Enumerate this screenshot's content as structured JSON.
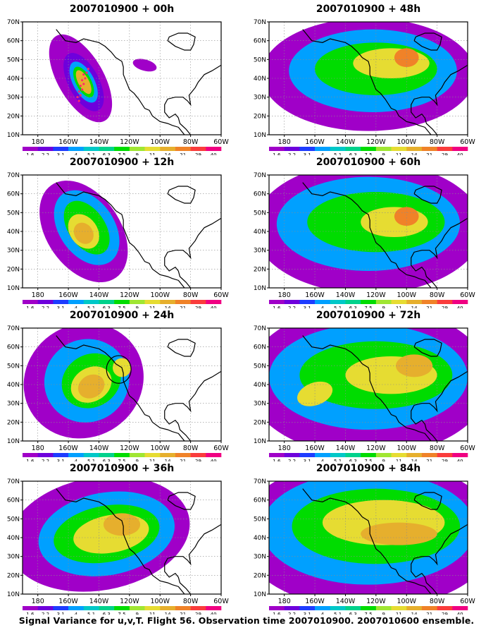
{
  "caption": "Signal Variance for u,v,T. Flight 56. Observation time 2007010900. 2007010600 ensemble.",
  "palette": [
    {
      "label": "1.6",
      "color": "#a000c8"
    },
    {
      "label": "2.2",
      "color": "#6e00dc"
    },
    {
      "label": "3.1",
      "color": "#1e3cff"
    },
    {
      "label": "4",
      "color": "#00a0ff"
    },
    {
      "label": "5.1",
      "color": "#00c8c8"
    },
    {
      "label": "6.3",
      "color": "#00d28c"
    },
    {
      "label": "7.5",
      "color": "#00dc00"
    },
    {
      "label": "9",
      "color": "#a0e632"
    },
    {
      "label": "11",
      "color": "#e6dc32"
    },
    {
      "label": "14",
      "color": "#e6af2d"
    },
    {
      "label": "21",
      "color": "#f08228"
    },
    {
      "label": "29",
      "color": "#fa3c3c"
    },
    {
      "label": "40",
      "color": "#f00082"
    }
  ],
  "chart_data": [
    {
      "type": "heatmap",
      "title": "2007010900 + 00h",
      "x_ticks": [
        "180",
        "160W",
        "140W",
        "120W",
        "100W",
        "80W",
        "60W"
      ],
      "y_ticks": [
        "10N",
        "20N",
        "30N",
        "40N",
        "50N",
        "60N",
        "70N"
      ],
      "xlim": [
        -190,
        -60
      ],
      "ylim": [
        10,
        70
      ],
      "grid": true,
      "blobs": [
        {
          "lon": -152,
          "lat": 40,
          "rx": 15,
          "ry": 26,
          "rot": -30,
          "level": 0
        },
        {
          "lon": -150,
          "lat": 38,
          "rx": 10,
          "ry": 17,
          "rot": -28,
          "level": 1
        },
        {
          "lon": -150,
          "lat": 38,
          "rx": 7,
          "ry": 12,
          "rot": -28,
          "level": 3
        },
        {
          "lon": -150,
          "lat": 38,
          "rx": 5,
          "ry": 9,
          "rot": -28,
          "level": 6
        },
        {
          "lon": -150,
          "lat": 38,
          "rx": 3.5,
          "ry": 7,
          "rot": -28,
          "level": 9
        },
        {
          "lon": -110,
          "lat": 47,
          "rx": 8,
          "ry": 3,
          "rot": 15,
          "level": 0
        }
      ],
      "obs_points": [
        [
          -153,
          28
        ],
        [
          -152,
          31
        ],
        [
          -151,
          34
        ],
        [
          -150,
          37
        ],
        [
          -149,
          40
        ],
        [
          -148,
          43
        ],
        [
          -154,
          30
        ],
        [
          -153,
          33
        ],
        [
          -152,
          36
        ],
        [
          -151,
          39
        ],
        [
          -150,
          42
        ],
        [
          -147,
          45
        ]
      ]
    },
    {
      "type": "heatmap",
      "title": "2007010900 + 12h",
      "x_ticks": [
        "180",
        "160W",
        "140W",
        "120W",
        "100W",
        "80W",
        "60W"
      ],
      "y_ticks": [
        "10N",
        "20N",
        "30N",
        "40N",
        "50N",
        "60N",
        "70N"
      ],
      "xlim": [
        -190,
        -60
      ],
      "ylim": [
        10,
        70
      ],
      "grid": true,
      "blobs": [
        {
          "lon": -150,
          "lat": 40,
          "rx": 24,
          "ry": 30,
          "rot": -35,
          "level": 0
        },
        {
          "lon": -148,
          "lat": 42,
          "rx": 18,
          "ry": 22,
          "rot": -35,
          "level": 3
        },
        {
          "lon": -148,
          "lat": 42,
          "rx": 12,
          "ry": 16,
          "rot": -35,
          "level": 6
        },
        {
          "lon": -150,
          "lat": 40,
          "rx": 9,
          "ry": 10,
          "rot": -35,
          "level": 8
        },
        {
          "lon": -150,
          "lat": 39,
          "rx": 6,
          "ry": 6,
          "rot": -35,
          "level": 9
        }
      ]
    },
    {
      "type": "heatmap",
      "title": "2007010900 + 24h",
      "x_ticks": [
        "180",
        "160W",
        "140W",
        "120W",
        "100W",
        "80W",
        "60W"
      ],
      "y_ticks": [
        "10N",
        "20N",
        "30N",
        "40N",
        "50N",
        "60N",
        "70N"
      ],
      "xlim": [
        -190,
        -60
      ],
      "ylim": [
        10,
        70
      ],
      "grid": true,
      "blobs": [
        {
          "lon": -150,
          "lat": 42,
          "rx": 40,
          "ry": 30,
          "rot": -30,
          "level": 0
        },
        {
          "lon": -148,
          "lat": 42,
          "rx": 28,
          "ry": 22,
          "rot": -30,
          "level": 3
        },
        {
          "lon": -145,
          "lat": 42,
          "rx": 20,
          "ry": 14,
          "rot": -30,
          "level": 6
        },
        {
          "lon": -145,
          "lat": 40,
          "rx": 14,
          "ry": 9,
          "rot": -30,
          "level": 8
        },
        {
          "lon": -145,
          "lat": 39,
          "rx": 9,
          "ry": 6,
          "rot": -30,
          "level": 9
        },
        {
          "lon": -125,
          "lat": 49,
          "rx": 6,
          "ry": 5,
          "rot": 0,
          "level": 8
        }
      ],
      "circle": {
        "lon": -127,
        "lat": 48,
        "r": 7
      }
    },
    {
      "type": "heatmap",
      "title": "2007010900 + 36h",
      "x_ticks": [
        "180",
        "160W",
        "140W",
        "120W",
        "100W",
        "80W",
        "60W"
      ],
      "y_ticks": [
        "10N",
        "20N",
        "30N",
        "40N",
        "50N",
        "60N",
        "70N"
      ],
      "xlim": [
        -190,
        -60
      ],
      "ylim": [
        10,
        70
      ],
      "grid": true,
      "blobs": [
        {
          "lon": -140,
          "lat": 42,
          "rx": 60,
          "ry": 30,
          "rot": -10,
          "level": 0
        },
        {
          "lon": -135,
          "lat": 42,
          "rx": 45,
          "ry": 22,
          "rot": -10,
          "level": 3
        },
        {
          "lon": -135,
          "lat": 42,
          "rx": 35,
          "ry": 15,
          "rot": -10,
          "level": 6
        },
        {
          "lon": -132,
          "lat": 42,
          "rx": 25,
          "ry": 10,
          "rot": -10,
          "level": 8
        },
        {
          "lon": -125,
          "lat": 47,
          "rx": 12,
          "ry": 6,
          "rot": 0,
          "level": 9
        }
      ]
    },
    {
      "type": "heatmap",
      "title": "2007010900 + 48h",
      "x_ticks": [
        "180",
        "160W",
        "140W",
        "120W",
        "100W",
        "80W",
        "60W"
      ],
      "y_ticks": [
        "10N",
        "20N",
        "30N",
        "40N",
        "50N",
        "60N",
        "70N"
      ],
      "xlim": [
        -190,
        -60
      ],
      "ylim": [
        10,
        70
      ],
      "grid": true,
      "blobs": [
        {
          "lon": -125,
          "lat": 42,
          "rx": 70,
          "ry": 30,
          "rot": 0,
          "level": 0
        },
        {
          "lon": -122,
          "lat": 44,
          "rx": 55,
          "ry": 22,
          "rot": 0,
          "level": 3
        },
        {
          "lon": -120,
          "lat": 45,
          "rx": 40,
          "ry": 14,
          "rot": 0,
          "level": 6
        },
        {
          "lon": -110,
          "lat": 48,
          "rx": 25,
          "ry": 8,
          "rot": 0,
          "level": 8
        },
        {
          "lon": -100,
          "lat": 51,
          "rx": 8,
          "ry": 5,
          "rot": 0,
          "level": 10
        }
      ]
    },
    {
      "type": "heatmap",
      "title": "2007010900 + 60h",
      "x_ticks": [
        "180",
        "160W",
        "140W",
        "120W",
        "100W",
        "80W",
        "60W"
      ],
      "y_ticks": [
        "10N",
        "20N",
        "30N",
        "40N",
        "50N",
        "60N",
        "70N"
      ],
      "xlim": [
        -190,
        -60
      ],
      "ylim": [
        10,
        70
      ],
      "grid": true,
      "blobs": [
        {
          "lon": -125,
          "lat": 42,
          "rx": 75,
          "ry": 35,
          "rot": 0,
          "level": 0
        },
        {
          "lon": -125,
          "lat": 44,
          "rx": 60,
          "ry": 25,
          "rot": 0,
          "level": 3
        },
        {
          "lon": -120,
          "lat": 45,
          "rx": 45,
          "ry": 16,
          "rot": 0,
          "level": 6
        },
        {
          "lon": -108,
          "lat": 45,
          "rx": 22,
          "ry": 8,
          "rot": 0,
          "level": 8
        },
        {
          "lon": -100,
          "lat": 48,
          "rx": 8,
          "ry": 5,
          "rot": 0,
          "level": 10
        }
      ]
    },
    {
      "type": "heatmap",
      "title": "2007010900 + 72h",
      "x_ticks": [
        "180",
        "160W",
        "140W",
        "120W",
        "100W",
        "80W",
        "60W"
      ],
      "y_ticks": [
        "10N",
        "20N",
        "30N",
        "40N",
        "50N",
        "60N",
        "70N"
      ],
      "xlim": [
        -190,
        -60
      ],
      "ylim": [
        10,
        70
      ],
      "grid": true,
      "blobs": [
        {
          "lon": -125,
          "lat": 42,
          "rx": 80,
          "ry": 40,
          "rot": 0,
          "level": 0
        },
        {
          "lon": -125,
          "lat": 44,
          "rx": 65,
          "ry": 28,
          "rot": 0,
          "level": 3
        },
        {
          "lon": -120,
          "lat": 45,
          "rx": 50,
          "ry": 18,
          "rot": 0,
          "level": 6
        },
        {
          "lon": -110,
          "lat": 45,
          "rx": 30,
          "ry": 10,
          "rot": 0,
          "level": 8
        },
        {
          "lon": -95,
          "lat": 50,
          "rx": 12,
          "ry": 6,
          "rot": 0,
          "level": 9
        },
        {
          "lon": -160,
          "lat": 35,
          "rx": 12,
          "ry": 6,
          "rot": -20,
          "level": 8
        }
      ]
    },
    {
      "type": "heatmap",
      "title": "2007010900 + 84h",
      "x_ticks": [
        "180",
        "160W",
        "140W",
        "120W",
        "100W",
        "80W",
        "60W"
      ],
      "y_ticks": [
        "10N",
        "20N",
        "30N",
        "40N",
        "50N",
        "60N",
        "70N"
      ],
      "xlim": [
        -190,
        -60
      ],
      "ylim": [
        10,
        70
      ],
      "grid": true,
      "blobs": [
        {
          "lon": -125,
          "lat": 42,
          "rx": 85,
          "ry": 40,
          "rot": 0,
          "level": 0
        },
        {
          "lon": -125,
          "lat": 45,
          "rx": 70,
          "ry": 30,
          "rot": 0,
          "level": 3
        },
        {
          "lon": -120,
          "lat": 46,
          "rx": 55,
          "ry": 20,
          "rot": 0,
          "level": 6
        },
        {
          "lon": -115,
          "lat": 48,
          "rx": 40,
          "ry": 12,
          "rot": 0,
          "level": 8
        },
        {
          "lon": -105,
          "lat": 42,
          "rx": 25,
          "ry": 6,
          "rot": 0,
          "level": 9
        }
      ]
    }
  ]
}
